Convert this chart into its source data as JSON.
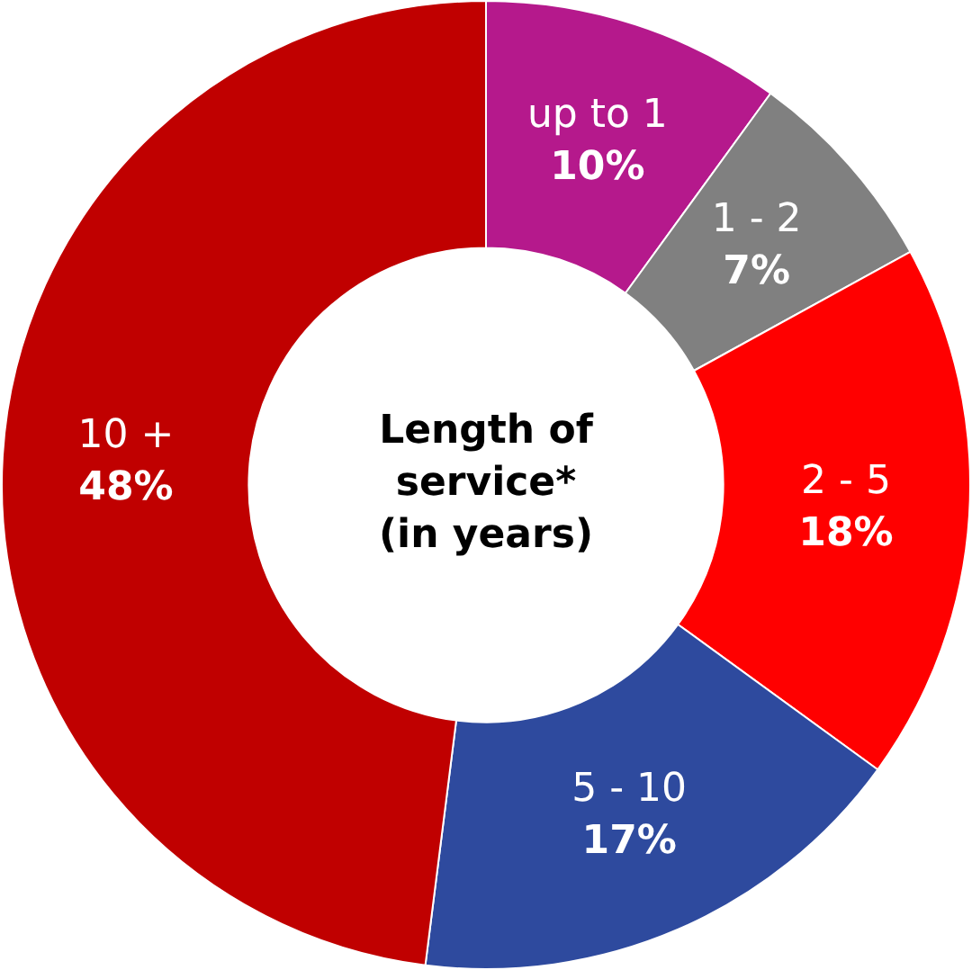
{
  "chart_data": {
    "type": "donut",
    "title": "Length of\nservice*\n(in years)",
    "categories": [
      "up to 1",
      "1 - 2",
      "2 - 5",
      "5 - 10",
      "10 +"
    ],
    "values": [
      10,
      7,
      18,
      17,
      48
    ],
    "value_labels": [
      "10%",
      "7%",
      "18%",
      "17%",
      "48%"
    ],
    "colors": [
      "#b5198c",
      "#808080",
      "#ff0000",
      "#2e4a9e",
      "#c00000"
    ],
    "legend": false
  }
}
